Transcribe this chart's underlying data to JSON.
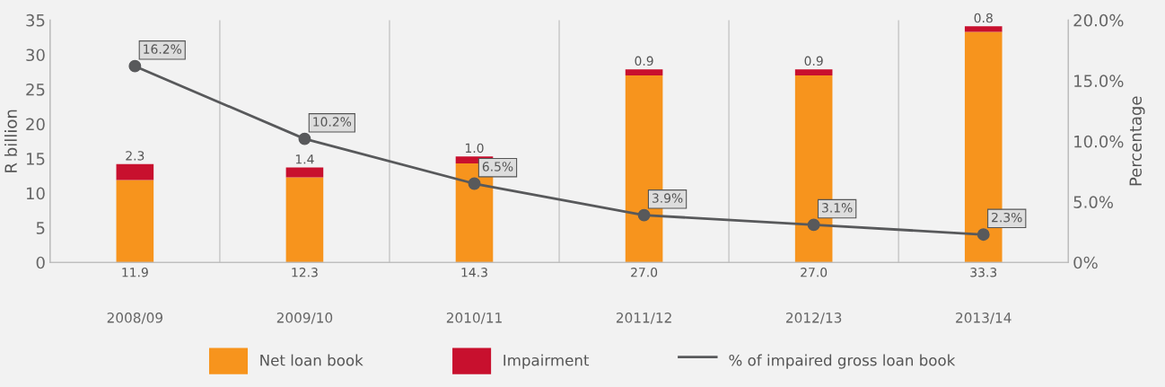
{
  "chart_data": {
    "type": "bar",
    "stacked": true,
    "ylabel": "R billion",
    "y2label": "Percentage",
    "categories": [
      "2008/09",
      "2009/10",
      "2010/11",
      "2011/12",
      "2012/13",
      "2013/14"
    ],
    "series": [
      {
        "name": "Net loan book",
        "color": "#f7941d",
        "values": [
          11.9,
          12.3,
          14.3,
          27.0,
          27.0,
          33.3
        ],
        "value_labels": [
          "11.9",
          "12.3",
          "14.3",
          "27.0",
          "27.0",
          "33.3"
        ]
      },
      {
        "name": "Impairment",
        "color": "#c8102e",
        "values": [
          2.3,
          1.4,
          1.0,
          0.9,
          0.9,
          0.8
        ],
        "value_labels": [
          "2.3",
          "1.4",
          "1.0",
          "0.9",
          "0.9",
          "0.8"
        ]
      },
      {
        "name": "% of impaired gross loan book",
        "type": "line",
        "axis": "y2",
        "color": "#58595b",
        "marker": "circle",
        "values": [
          16.2,
          10.2,
          6.5,
          3.9,
          3.1,
          2.3
        ],
        "value_labels": [
          "16.2%",
          "10.2%",
          "6.5%",
          "3.9%",
          "3.1%",
          "2.3%"
        ]
      }
    ],
    "ylim": [
      0,
      35
    ],
    "yticks": [
      0,
      5,
      10,
      15,
      20,
      25,
      30,
      35
    ],
    "y2lim": [
      0,
      20
    ],
    "y2ticks": [
      {
        "value": 0,
        "label": "0%"
      },
      {
        "value": 5,
        "label": "5.0%"
      },
      {
        "value": 10,
        "label": "10.0%"
      },
      {
        "value": 15,
        "label": "15.0%"
      },
      {
        "value": 20,
        "label": "20.0%"
      }
    ],
    "grid": "x",
    "legend": "bottom"
  }
}
